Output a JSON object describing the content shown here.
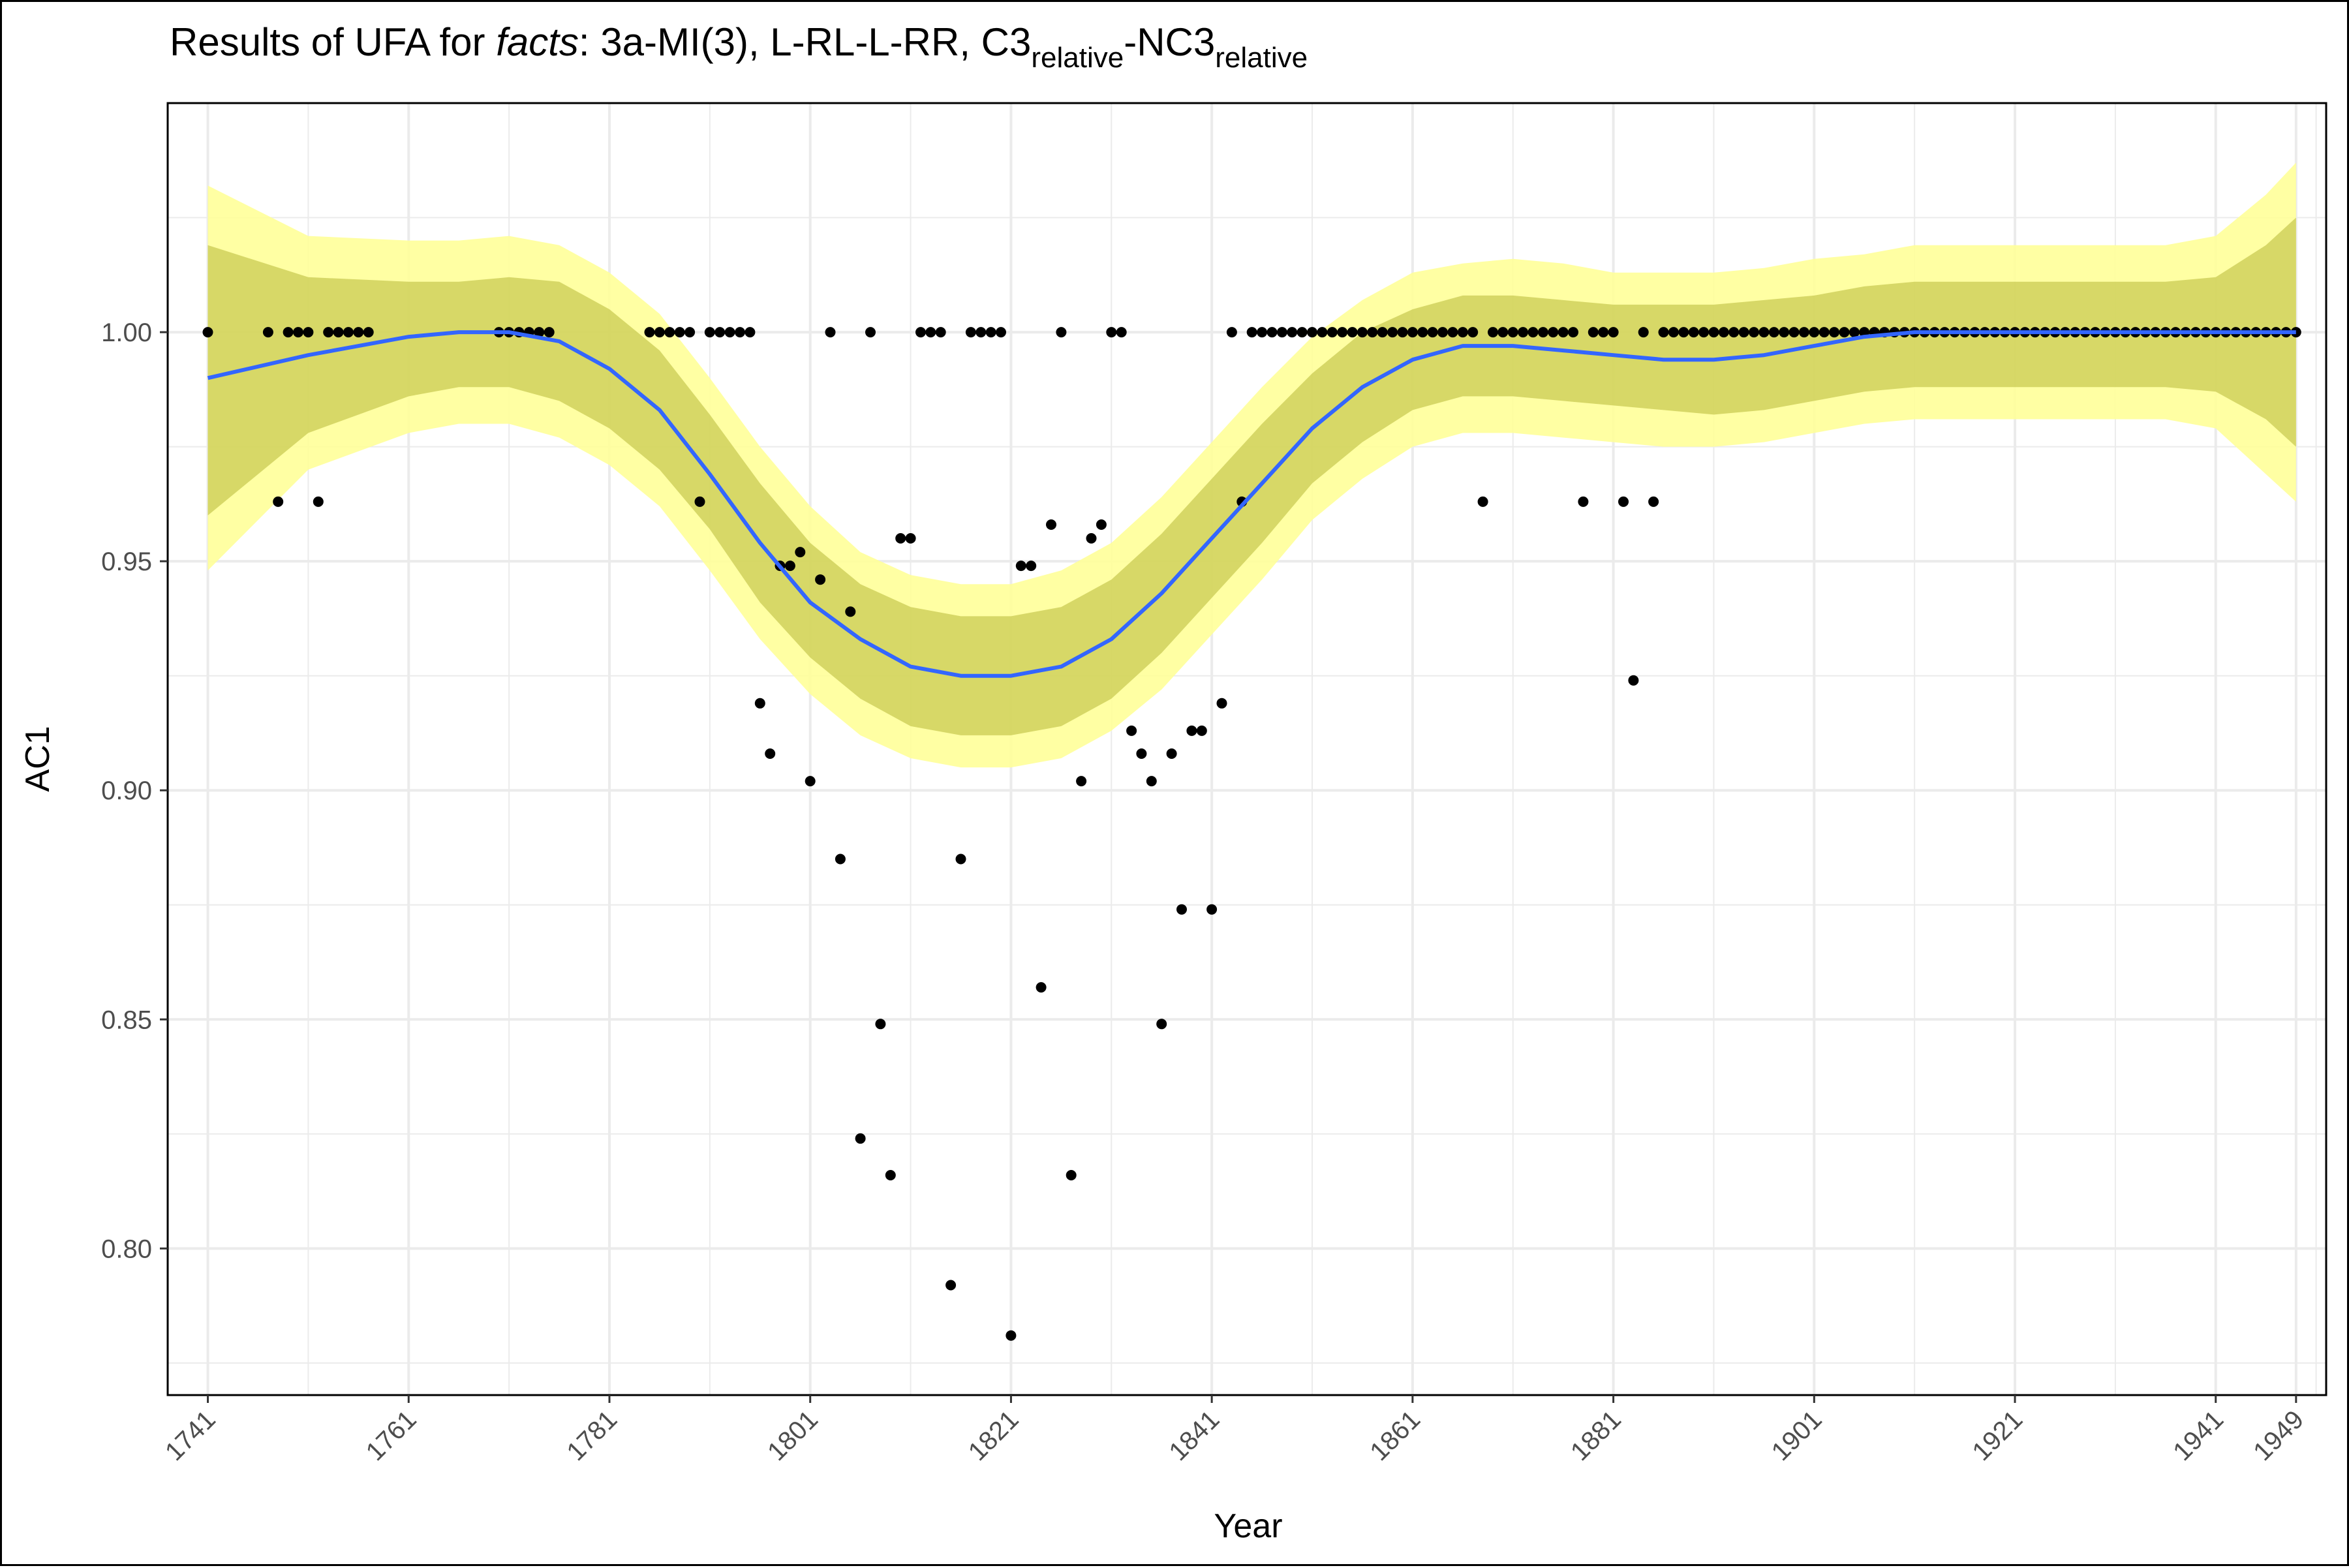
{
  "title": {
    "prefix": "Results of UFA for ",
    "italic": "facts",
    "part1": ": 3a-MI(3), L-RL-L-RR, C3",
    "sub1": "relative",
    "part2": "-NC3",
    "sub2": "relative"
  },
  "chart_data": {
    "type": "scatter",
    "xlabel": "Year",
    "ylabel": "AC1",
    "xlim": [
      1737,
      1952
    ],
    "ylim": [
      0.768,
      1.05
    ],
    "x_ticks": [
      1741,
      1761,
      1781,
      1801,
      1821,
      1841,
      1861,
      1881,
      1901,
      1921,
      1941,
      1949
    ],
    "y_ticks": [
      0.8,
      0.85,
      0.9,
      0.95,
      1.0
    ],
    "y_tick_labels": [
      "0.80",
      "0.85",
      "0.90",
      "0.95",
      "1.00"
    ],
    "grid": true,
    "colors": {
      "points": "#000000",
      "smooth_line": "#3366FF",
      "outer_band": "#FFFF99",
      "inner_band": "#BDBE3F",
      "panel_border": "#000000",
      "grid": "#ebebeb"
    },
    "points": [
      [
        1741,
        1.0
      ],
      [
        1747,
        1.0
      ],
      [
        1748,
        0.963
      ],
      [
        1749,
        1.0
      ],
      [
        1750,
        1.0
      ],
      [
        1751,
        1.0
      ],
      [
        1752,
        0.963
      ],
      [
        1753,
        1.0
      ],
      [
        1754,
        1.0
      ],
      [
        1755,
        1.0
      ],
      [
        1756,
        1.0
      ],
      [
        1757,
        1.0
      ],
      [
        1770,
        1.0
      ],
      [
        1771,
        1.0
      ],
      [
        1772,
        1.0
      ],
      [
        1773,
        1.0
      ],
      [
        1774,
        1.0
      ],
      [
        1775,
        1.0
      ],
      [
        1785,
        1.0
      ],
      [
        1786,
        1.0
      ],
      [
        1787,
        1.0
      ],
      [
        1788,
        1.0
      ],
      [
        1789,
        1.0
      ],
      [
        1790,
        0.963
      ],
      [
        1791,
        1.0
      ],
      [
        1792,
        1.0
      ],
      [
        1793,
        1.0
      ],
      [
        1794,
        1.0
      ],
      [
        1795,
        1.0
      ],
      [
        1796,
        0.919
      ],
      [
        1797,
        0.908
      ],
      [
        1798,
        0.949
      ],
      [
        1799,
        0.949
      ],
      [
        1800,
        0.952
      ],
      [
        1801,
        0.902
      ],
      [
        1802,
        0.946
      ],
      [
        1803,
        1.0
      ],
      [
        1804,
        0.885
      ],
      [
        1805,
        0.939
      ],
      [
        1806,
        0.824
      ],
      [
        1807,
        1.0
      ],
      [
        1808,
        0.849
      ],
      [
        1809,
        0.816
      ],
      [
        1810,
        0.955
      ],
      [
        1811,
        0.955
      ],
      [
        1812,
        1.0
      ],
      [
        1813,
        1.0
      ],
      [
        1814,
        1.0
      ],
      [
        1815,
        0.792
      ],
      [
        1816,
        0.885
      ],
      [
        1817,
        1.0
      ],
      [
        1818,
        1.0
      ],
      [
        1819,
        1.0
      ],
      [
        1820,
        1.0
      ],
      [
        1821,
        0.781
      ],
      [
        1822,
        0.949
      ],
      [
        1823,
        0.949
      ],
      [
        1824,
        0.857
      ],
      [
        1825,
        0.958
      ],
      [
        1826,
        1.0
      ],
      [
        1827,
        0.816
      ],
      [
        1828,
        0.902
      ],
      [
        1829,
        0.955
      ],
      [
        1830,
        0.958
      ],
      [
        1831,
        1.0
      ],
      [
        1832,
        1.0
      ],
      [
        1833,
        0.913
      ],
      [
        1834,
        0.908
      ],
      [
        1835,
        0.902
      ],
      [
        1836,
        0.849
      ],
      [
        1837,
        0.908
      ],
      [
        1838,
        0.874
      ],
      [
        1839,
        0.913
      ],
      [
        1840,
        0.913
      ],
      [
        1841,
        0.874
      ],
      [
        1842,
        0.919
      ],
      [
        1843,
        1.0
      ],
      [
        1844,
        0.963
      ],
      [
        1845,
        1.0
      ],
      [
        1846,
        1.0
      ],
      [
        1847,
        1.0
      ],
      [
        1848,
        1.0
      ],
      [
        1849,
        1.0
      ],
      [
        1850,
        1.0
      ],
      [
        1851,
        1.0
      ],
      [
        1852,
        1.0
      ],
      [
        1853,
        1.0
      ],
      [
        1854,
        1.0
      ],
      [
        1855,
        1.0
      ],
      [
        1856,
        1.0
      ],
      [
        1857,
        1.0
      ],
      [
        1858,
        1.0
      ],
      [
        1859,
        1.0
      ],
      [
        1860,
        1.0
      ],
      [
        1861,
        1.0
      ],
      [
        1862,
        1.0
      ],
      [
        1863,
        1.0
      ],
      [
        1864,
        1.0
      ],
      [
        1865,
        1.0
      ],
      [
        1866,
        1.0
      ],
      [
        1867,
        1.0
      ],
      [
        1868,
        0.963
      ],
      [
        1869,
        1.0
      ],
      [
        1870,
        1.0
      ],
      [
        1871,
        1.0
      ],
      [
        1872,
        1.0
      ],
      [
        1873,
        1.0
      ],
      [
        1874,
        1.0
      ],
      [
        1875,
        1.0
      ],
      [
        1876,
        1.0
      ],
      [
        1877,
        1.0
      ],
      [
        1878,
        0.963
      ],
      [
        1879,
        1.0
      ],
      [
        1880,
        1.0
      ],
      [
        1881,
        1.0
      ],
      [
        1882,
        0.963
      ],
      [
        1883,
        0.924
      ],
      [
        1884,
        1.0
      ],
      [
        1885,
        0.963
      ],
      [
        1886,
        1.0
      ],
      [
        1887,
        1.0
      ],
      [
        1888,
        1.0
      ],
      [
        1889,
        1.0
      ],
      [
        1890,
        1.0
      ],
      [
        1891,
        1.0
      ],
      [
        1892,
        1.0
      ],
      [
        1893,
        1.0
      ],
      [
        1894,
        1.0
      ],
      [
        1895,
        1.0
      ],
      [
        1896,
        1.0
      ],
      [
        1897,
        1.0
      ],
      [
        1898,
        1.0
      ],
      [
        1899,
        1.0
      ],
      [
        1900,
        1.0
      ],
      [
        1901,
        1.0
      ],
      [
        1902,
        1.0
      ],
      [
        1903,
        1.0
      ],
      [
        1904,
        1.0
      ],
      [
        1905,
        1.0
      ],
      [
        1906,
        1.0
      ],
      [
        1907,
        1.0
      ],
      [
        1908,
        1.0
      ],
      [
        1909,
        1.0
      ],
      [
        1910,
        1.0
      ],
      [
        1911,
        1.0
      ],
      [
        1912,
        1.0
      ],
      [
        1913,
        1.0
      ],
      [
        1914,
        1.0
      ],
      [
        1915,
        1.0
      ],
      [
        1916,
        1.0
      ],
      [
        1917,
        1.0
      ],
      [
        1918,
        1.0
      ],
      [
        1919,
        1.0
      ],
      [
        1920,
        1.0
      ],
      [
        1921,
        1.0
      ],
      [
        1922,
        1.0
      ],
      [
        1923,
        1.0
      ],
      [
        1924,
        1.0
      ],
      [
        1925,
        1.0
      ],
      [
        1926,
        1.0
      ],
      [
        1927,
        1.0
      ],
      [
        1928,
        1.0
      ],
      [
        1929,
        1.0
      ],
      [
        1930,
        1.0
      ],
      [
        1931,
        1.0
      ],
      [
        1932,
        1.0
      ],
      [
        1933,
        1.0
      ],
      [
        1934,
        1.0
      ],
      [
        1935,
        1.0
      ],
      [
        1936,
        1.0
      ],
      [
        1937,
        1.0
      ],
      [
        1938,
        1.0
      ],
      [
        1939,
        1.0
      ],
      [
        1940,
        1.0
      ],
      [
        1941,
        1.0
      ],
      [
        1942,
        1.0
      ],
      [
        1943,
        1.0
      ],
      [
        1944,
        1.0
      ],
      [
        1945,
        1.0
      ],
      [
        1946,
        1.0
      ],
      [
        1947,
        1.0
      ],
      [
        1948,
        1.0
      ],
      [
        1949,
        1.0
      ]
    ],
    "smooth": {
      "x": [
        1741,
        1751,
        1761,
        1766,
        1771,
        1776,
        1781,
        1786,
        1791,
        1796,
        1801,
        1806,
        1811,
        1816,
        1821,
        1826,
        1831,
        1836,
        1841,
        1846,
        1851,
        1856,
        1861,
        1866,
        1871,
        1876,
        1881,
        1886,
        1891,
        1896,
        1901,
        1906,
        1911,
        1916,
        1921,
        1926,
        1931,
        1936,
        1941,
        1946,
        1949
      ],
      "y": [
        0.99,
        0.995,
        0.999,
        1.0,
        1.0,
        0.998,
        0.992,
        0.983,
        0.969,
        0.954,
        0.941,
        0.933,
        0.927,
        0.925,
        0.925,
        0.927,
        0.933,
        0.943,
        0.955,
        0.967,
        0.979,
        0.988,
        0.994,
        0.997,
        0.997,
        0.996,
        0.995,
        0.994,
        0.994,
        0.995,
        0.997,
        0.999,
        1.0,
        1.0,
        1.0,
        1.0,
        1.0,
        1.0,
        1.0,
        1.0,
        1.0
      ],
      "inner_upper": [
        1.019,
        1.012,
        1.011,
        1.011,
        1.012,
        1.011,
        1.005,
        0.996,
        0.982,
        0.967,
        0.954,
        0.945,
        0.94,
        0.938,
        0.938,
        0.94,
        0.946,
        0.956,
        0.968,
        0.98,
        0.991,
        1.0,
        1.005,
        1.008,
        1.008,
        1.007,
        1.006,
        1.006,
        1.006,
        1.007,
        1.008,
        1.01,
        1.011,
        1.011,
        1.011,
        1.011,
        1.011,
        1.011,
        1.012,
        1.019,
        1.025
      ],
      "inner_lower": [
        0.96,
        0.978,
        0.986,
        0.988,
        0.988,
        0.985,
        0.979,
        0.97,
        0.957,
        0.941,
        0.929,
        0.92,
        0.914,
        0.912,
        0.912,
        0.914,
        0.92,
        0.93,
        0.942,
        0.954,
        0.967,
        0.976,
        0.983,
        0.986,
        0.986,
        0.985,
        0.984,
        0.983,
        0.982,
        0.983,
        0.985,
        0.987,
        0.988,
        0.988,
        0.988,
        0.988,
        0.988,
        0.988,
        0.987,
        0.981,
        0.975
      ],
      "outer_upper": [
        1.032,
        1.021,
        1.02,
        1.02,
        1.021,
        1.019,
        1.013,
        1.004,
        0.99,
        0.975,
        0.962,
        0.952,
        0.947,
        0.945,
        0.945,
        0.948,
        0.954,
        0.964,
        0.976,
        0.988,
        0.999,
        1.007,
        1.013,
        1.015,
        1.016,
        1.015,
        1.013,
        1.013,
        1.013,
        1.014,
        1.016,
        1.017,
        1.019,
        1.019,
        1.019,
        1.019,
        1.019,
        1.019,
        1.021,
        1.03,
        1.037
      ],
      "outer_lower": [
        0.948,
        0.97,
        0.978,
        0.98,
        0.98,
        0.977,
        0.971,
        0.962,
        0.948,
        0.933,
        0.921,
        0.912,
        0.907,
        0.905,
        0.905,
        0.907,
        0.913,
        0.922,
        0.934,
        0.946,
        0.959,
        0.968,
        0.975,
        0.978,
        0.978,
        0.977,
        0.976,
        0.975,
        0.975,
        0.976,
        0.978,
        0.98,
        0.981,
        0.981,
        0.981,
        0.981,
        0.981,
        0.981,
        0.979,
        0.969,
        0.963
      ]
    }
  }
}
